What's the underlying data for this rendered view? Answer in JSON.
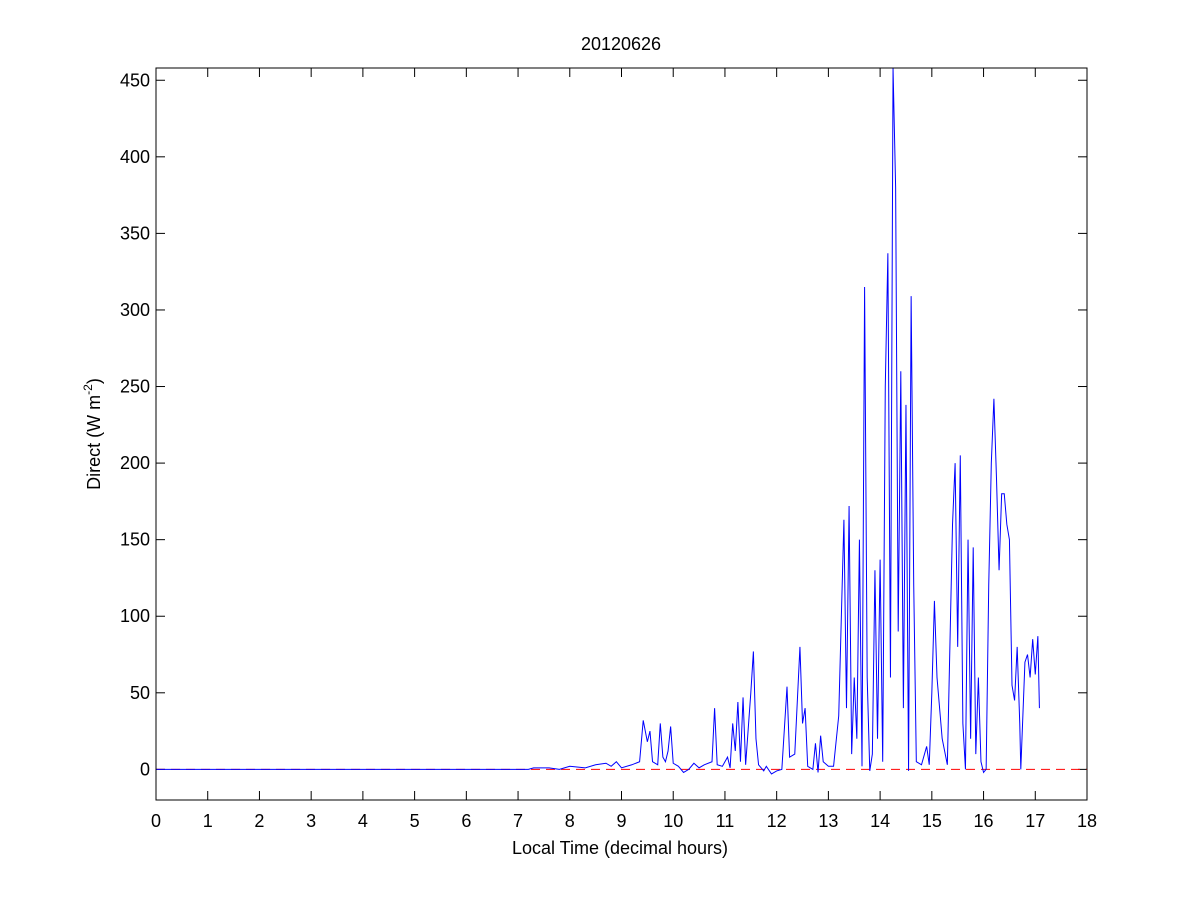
{
  "chart_data": {
    "type": "line",
    "title": "20120626",
    "xlabel": "Local Time (decimal hours)",
    "ylabel": {
      "text": "Direct (W m",
      "superscript": "-2",
      "suffix": ")"
    },
    "xlim": [
      0,
      18
    ],
    "ylim": [
      -20,
      458
    ],
    "xticks": [
      0,
      1,
      2,
      3,
      4,
      5,
      6,
      7,
      8,
      9,
      10,
      11,
      12,
      13,
      14,
      15,
      16,
      17,
      18
    ],
    "yticks": [
      0,
      50,
      100,
      150,
      200,
      250,
      300,
      350,
      400,
      450
    ],
    "color": "#0000ff",
    "reference_line": {
      "y": 0,
      "color": "#ff0000",
      "style": "dashed"
    },
    "x": [
      0,
      7.2,
      7.3,
      7.6,
      7.8,
      8.0,
      8.3,
      8.5,
      8.7,
      8.8,
      8.9,
      9.0,
      9.2,
      9.35,
      9.42,
      9.5,
      9.55,
      9.6,
      9.7,
      9.75,
      9.8,
      9.85,
      9.9,
      9.95,
      10.0,
      10.1,
      10.2,
      10.3,
      10.4,
      10.5,
      10.6,
      10.75,
      10.8,
      10.85,
      10.95,
      11.05,
      11.1,
      11.15,
      11.2,
      11.25,
      11.3,
      11.35,
      11.4,
      11.5,
      11.55,
      11.6,
      11.65,
      11.75,
      11.8,
      11.9,
      12.0,
      12.1,
      12.2,
      12.25,
      12.35,
      12.45,
      12.5,
      12.55,
      12.6,
      12.7,
      12.75,
      12.8,
      12.85,
      12.9,
      13.0,
      13.1,
      13.2,
      13.3,
      13.35,
      13.4,
      13.45,
      13.5,
      13.55,
      13.6,
      13.65,
      13.7,
      13.75,
      13.8,
      13.85,
      13.9,
      13.95,
      14.0,
      14.05,
      14.1,
      14.15,
      14.2,
      14.25,
      14.3,
      14.35,
      14.4,
      14.45,
      14.5,
      14.55,
      14.6,
      14.65,
      14.7,
      14.8,
      14.9,
      14.95,
      15.0,
      15.05,
      15.1,
      15.2,
      15.3,
      15.4,
      15.45,
      15.5,
      15.55,
      15.6,
      15.65,
      15.7,
      15.75,
      15.8,
      15.85,
      15.9,
      15.95,
      16.0,
      16.05,
      16.1,
      16.15,
      16.2,
      16.25,
      16.3,
      16.35,
      16.4,
      16.45,
      16.5,
      16.55,
      16.6,
      16.65,
      16.7,
      16.72,
      16.8,
      16.85,
      16.9,
      16.95,
      17.0,
      17.05,
      17.08
    ],
    "values": [
      0,
      0,
      1,
      1,
      0,
      2,
      1,
      3,
      4,
      2,
      5,
      1,
      3,
      5,
      32,
      18,
      25,
      5,
      3,
      30,
      8,
      5,
      12,
      28,
      4,
      2,
      -2,
      0,
      4,
      1,
      3,
      5,
      40,
      3,
      2,
      8,
      1,
      30,
      12,
      44,
      5,
      47,
      3,
      50,
      77,
      20,
      3,
      -1,
      2,
      -3,
      -1,
      0,
      54,
      8,
      10,
      80,
      30,
      40,
      2,
      0,
      17,
      -2,
      22,
      5,
      2,
      2,
      35,
      163,
      40,
      172,
      10,
      60,
      20,
      150,
      2,
      315,
      60,
      -1,
      10,
      130,
      20,
      137,
      5,
      250,
      337,
      60,
      458,
      380,
      90,
      260,
      40,
      238,
      -1,
      309,
      120,
      5,
      3,
      15,
      3,
      50,
      110,
      60,
      20,
      3,
      160,
      200,
      80,
      205,
      30,
      0,
      150,
      20,
      145,
      10,
      60,
      5,
      -2,
      0,
      120,
      200,
      242,
      190,
      130,
      180,
      180,
      160,
      150,
      55,
      45,
      80,
      30,
      0,
      70,
      75,
      60,
      85,
      62,
      87,
      40
    ]
  }
}
